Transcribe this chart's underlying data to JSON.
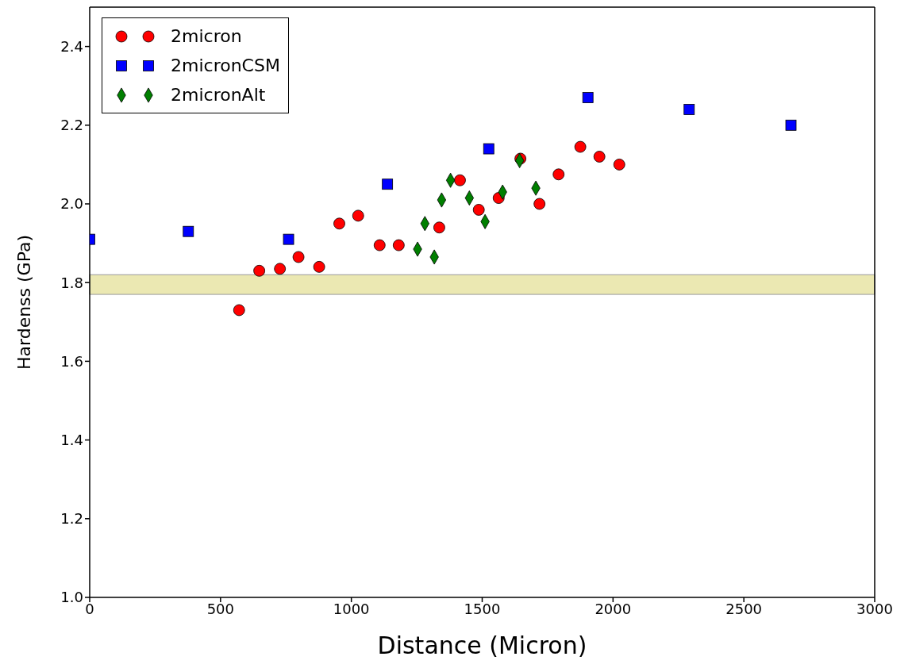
{
  "chart_data": {
    "type": "scatter",
    "xlabel": "Distance (Micron)",
    "ylabel": "Hardenss (GPa)",
    "xlim": [
      0,
      3000
    ],
    "xticks": [
      0,
      500,
      1000,
      1500,
      2000,
      2500,
      3000
    ],
    "ylim": [
      1.0,
      2.5
    ],
    "yticks": [
      {
        "value": 1.0,
        "label": "1.0"
      },
      1.2,
      1.4,
      1.6,
      1.8,
      {
        "value": 2.0,
        "label": "2.0"
      },
      2.2,
      2.4
    ],
    "grid": false,
    "legend": "top left",
    "bands": [
      {
        "axis": "y",
        "from": 1.77,
        "to": 1.82,
        "color": "#ebe8b2"
      }
    ],
    "series": [
      {
        "name": "2micron",
        "color": "#ff0000",
        "marker": "circle",
        "x": [
          571,
          648,
          727,
          798,
          877,
          954,
          1026,
          1108,
          1181,
          1336,
          1415,
          1487,
          1563,
          1646,
          1719,
          1792,
          1875,
          1948,
          2024
        ],
        "values": [
          1.73,
          1.83,
          1.835,
          1.865,
          1.84,
          1.95,
          1.97,
          1.895,
          1.895,
          1.94,
          2.06,
          1.985,
          2.015,
          2.115,
          2.0,
          2.075,
          2.145,
          2.12,
          2.1
        ]
      },
      {
        "name": "2micronCSM",
        "color": "#0000ff",
        "marker": "square",
        "x": [
          0,
          377,
          760,
          1138,
          1525,
          1904,
          2291,
          2680
        ],
        "values": [
          1.91,
          1.93,
          1.91,
          2.05,
          2.14,
          2.27,
          2.24,
          2.2
        ]
      },
      {
        "name": "2micronAlt",
        "color": "#007f00",
        "marker": "diamond",
        "x": [
          1253,
          1281,
          1317,
          1345,
          1379,
          1451,
          1511,
          1578,
          1643,
          1705
        ],
        "values": [
          1.885,
          1.95,
          1.865,
          2.01,
          2.06,
          2.015,
          1.955,
          2.03,
          2.11,
          2.04
        ]
      }
    ]
  }
}
